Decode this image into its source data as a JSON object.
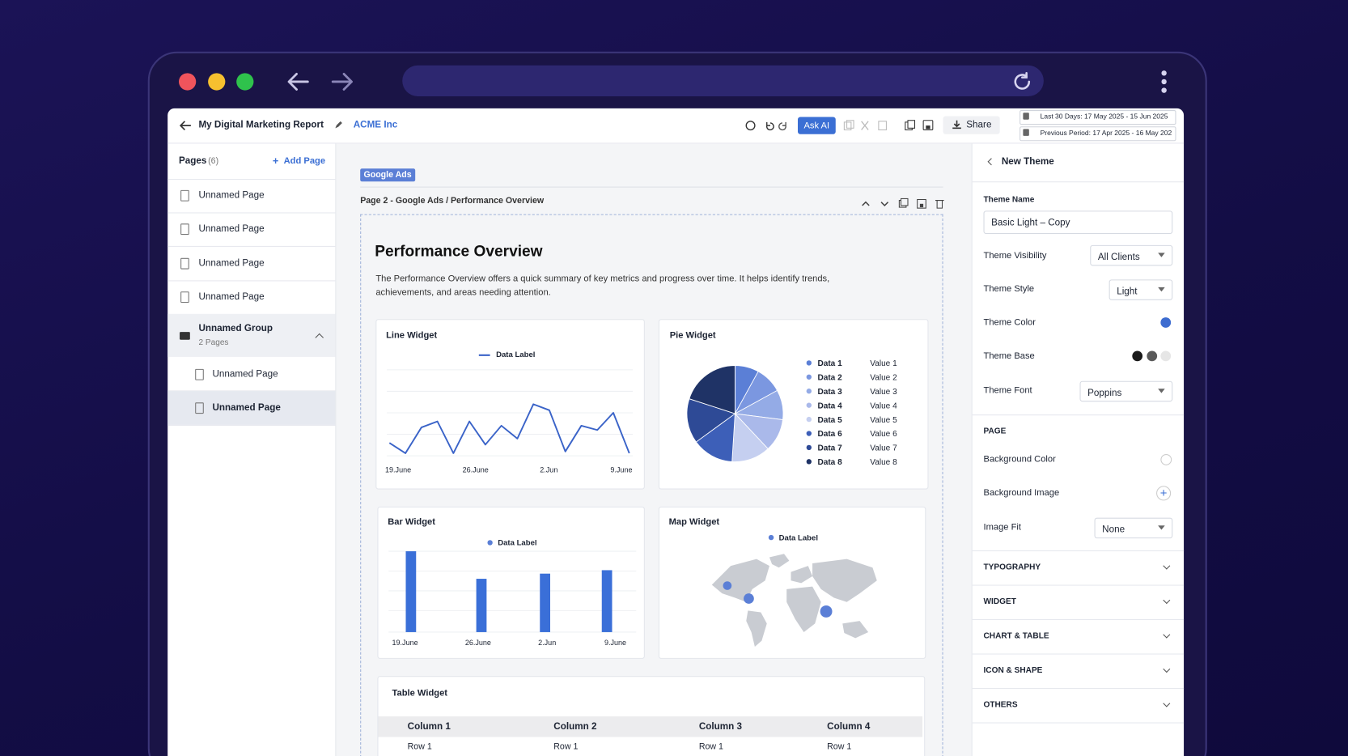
{
  "toolbar": {
    "report_title": "My Digital Marketing Report",
    "client": "ACME Inc",
    "ask_ai": "Ask AI",
    "share": "Share",
    "date_range": "Last 30 Days: 17 May 2025 - 15 Jun 2025",
    "previous_period": "Previous Period: 17 Apr 2025 - 16 May 202"
  },
  "sidebar": {
    "title": "Pages",
    "count": "(6)",
    "add_page": "Add Page",
    "pages": [
      "Unnamed Page",
      "Unnamed Page",
      "Unnamed Page",
      "Unnamed Page"
    ],
    "group": {
      "name": "Unnamed Group",
      "subtitle": "2 Pages",
      "pages": [
        "Unnamed Page",
        "Unnamed Page"
      ]
    }
  },
  "canvas": {
    "tag": "Google Ads",
    "breadcrumb": "Page 2 - Google Ads / Performance Overview",
    "heading": "Performance Overview",
    "description": [
      "The Performance Overview offers a quick summary of key metrics and progress over time. It helps identify trends,",
      "achievements, and areas needing attention."
    ],
    "line_widget": {
      "type": "line",
      "title": "Line Widget",
      "legend": "Data Label",
      "color": "#3a63c8",
      "x_labels": [
        "19.June",
        "26.June",
        "2.Jun",
        "9.June"
      ],
      "ylim": [
        0,
        100
      ],
      "values": [
        15,
        3,
        33,
        40,
        3,
        40,
        13,
        35,
        20,
        60,
        53,
        5,
        35,
        30,
        50,
        3
      ]
    },
    "pie_widget": {
      "type": "pie",
      "title": "Pie Widget",
      "labels": [
        "Data 1",
        "Data 2",
        "Data 3",
        "Data 4",
        "Data 5",
        "Data 6",
        "Data 7",
        "Data 8"
      ],
      "value_labels": [
        "Value 1",
        "Value 2",
        "Value 3",
        "Value 4",
        "Value 5",
        "Value 6",
        "Value 7",
        "Value 8"
      ],
      "values": [
        8,
        9,
        10,
        11,
        13,
        14,
        15,
        20
      ],
      "colors": [
        "#5b7fd6",
        "#7b97e0",
        "#94abe6",
        "#aab9ea",
        "#c5cff0",
        "#3d5fb8",
        "#2e4a96",
        "#1f3366"
      ]
    },
    "bar_widget": {
      "type": "bar",
      "title": "Bar Widget",
      "legend": "Data Label",
      "color": "#3a6fd8",
      "x_labels": [
        "19.June",
        "26.June",
        "2.Jun",
        "9.June"
      ],
      "ylim": [
        0,
        100
      ],
      "values": [
        94,
        62,
        68,
        72
      ]
    },
    "map_widget": {
      "title": "Map Widget",
      "legend": "Data Label"
    },
    "table_widget": {
      "title": "Table Widget",
      "columns": [
        "Column 1",
        "Column 2",
        "Column 3",
        "Column 4"
      ],
      "rows": [
        [
          "Row 1",
          "Row 1",
          "Row 1",
          "Row 1"
        ]
      ]
    }
  },
  "theme_panel": {
    "title": "New Theme",
    "name_label": "Theme Name",
    "name_value": "Basic Light – Copy",
    "visibility": {
      "label": "Theme Visibility",
      "value": "All Clients"
    },
    "style": {
      "label": "Theme Style",
      "value": "Light"
    },
    "color": {
      "label": "Theme Color"
    },
    "base": {
      "label": "Theme Base"
    },
    "font": {
      "label": "Theme Font",
      "value": "Poppins"
    },
    "page_section": "PAGE",
    "background_color": "Background Color",
    "background_image": "Background Image",
    "image_fit": {
      "label": "Image Fit",
      "value": "None"
    },
    "sections": [
      "TYPOGRAPHY",
      "WIDGET",
      "CHART & TABLE",
      "ICON & SHAPE",
      "OTHERS"
    ]
  }
}
